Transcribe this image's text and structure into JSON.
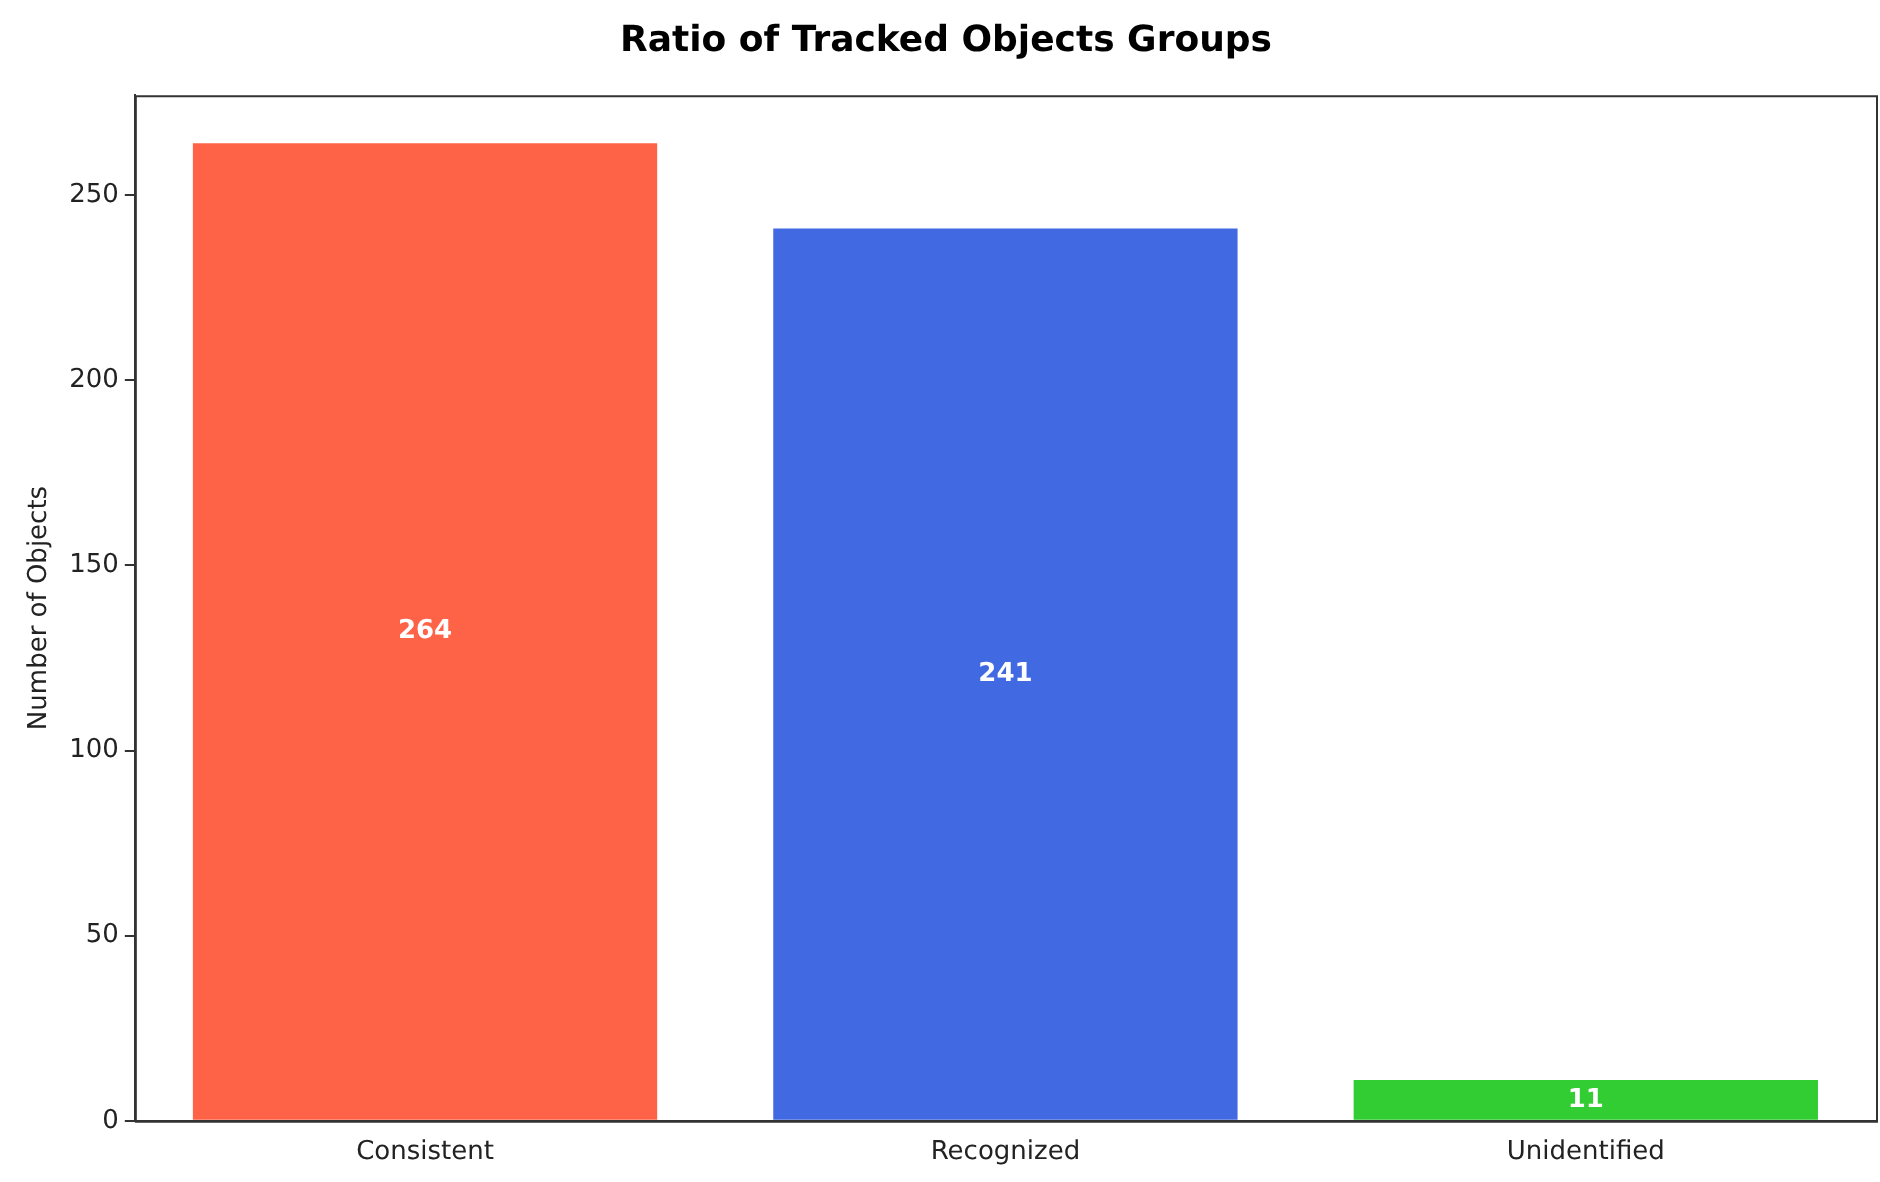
{
  "chart_data": {
    "type": "bar",
    "title": "Ratio of Tracked Objects Groups",
    "ylabel": "Number of Objects",
    "categories": [
      "Consistent",
      "Recognized",
      "Unidentified"
    ],
    "values": [
      264,
      241,
      11
    ],
    "colors": [
      "#ff6347",
      "#4169e1",
      "#32cd32"
    ],
    "ylim": [
      0,
      277
    ],
    "yticks": [
      0,
      50,
      100,
      150,
      200,
      250
    ],
    "data_labels": true,
    "grid": false,
    "legend": false
  }
}
